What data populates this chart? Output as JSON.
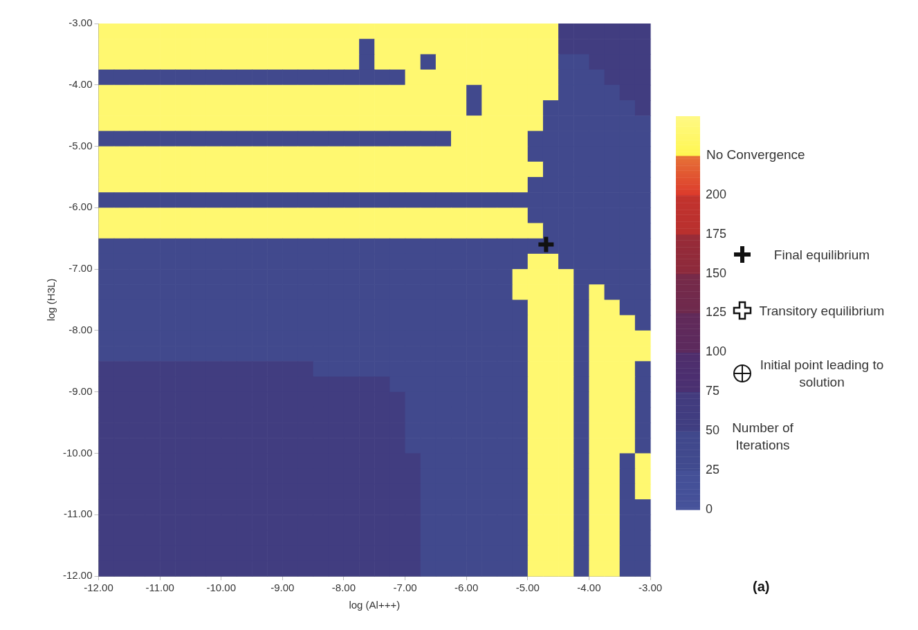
{
  "chart_data": {
    "type": "heatmap",
    "xlabel": "log (Al+++)",
    "ylabel": "log (H3L)",
    "clabel": "Number of Iterations",
    "xlim": [
      -12,
      -3
    ],
    "ylim": [
      -12,
      -3
    ],
    "xticks": [
      {
        "value": -12,
        "label": "-12.00"
      },
      {
        "value": -11,
        "label": "-11.00"
      },
      {
        "value": -10,
        "label": "-10.00"
      },
      {
        "value": -9,
        "label": "-9.00"
      },
      {
        "value": -8,
        "label": "-8.00"
      },
      {
        "value": -7,
        "label": "-7.00"
      },
      {
        "value": -6,
        "label": "-6.00"
      },
      {
        "value": -5,
        "label": "-5.00"
      },
      {
        "value": -4,
        "label": "-4.00"
      },
      {
        "value": -3,
        "label": "-3.00"
      }
    ],
    "yticks": [
      {
        "value": -12,
        "label": "-12.00"
      },
      {
        "value": -11,
        "label": "-11.00"
      },
      {
        "value": -10,
        "label": "-10.00"
      },
      {
        "value": -9,
        "label": "-9.00"
      },
      {
        "value": -8,
        "label": "-8.00"
      },
      {
        "value": -7,
        "label": "-7.00"
      },
      {
        "value": -6,
        "label": "-6.00"
      },
      {
        "value": -5,
        "label": "-5.00"
      },
      {
        "value": -4,
        "label": "-4.00"
      },
      {
        "value": -3,
        "label": "-3.00"
      }
    ],
    "clim": [
      0,
      250
    ],
    "cticks": [
      0,
      25,
      50,
      75,
      100,
      125,
      150,
      175,
      200
    ],
    "colors": [
      "#46529a",
      "#414b8f",
      "#403f82",
      "#4a3072",
      "#5c2a5e",
      "#6e2a4e",
      "#8c2a3c",
      "#b8302e",
      "#dc3a2c",
      "#fff650"
    ],
    "cells": [
      [
        240,
        240,
        240,
        240,
        240,
        240,
        240,
        240,
        240,
        240,
        240,
        240,
        240,
        240,
        240,
        240,
        240,
        240,
        240,
        240,
        240,
        240,
        240,
        240,
        240,
        240,
        240,
        240,
        240,
        240,
        60,
        60,
        60,
        60,
        60,
        60
      ],
      [
        240,
        240,
        240,
        240,
        240,
        240,
        240,
        240,
        240,
        240,
        240,
        240,
        240,
        240,
        240,
        240,
        240,
        40,
        240,
        240,
        240,
        240,
        240,
        240,
        240,
        240,
        240,
        240,
        240,
        240,
        60,
        60,
        60,
        60,
        60,
        60
      ],
      [
        240,
        240,
        240,
        240,
        240,
        240,
        240,
        240,
        240,
        240,
        240,
        240,
        240,
        240,
        240,
        240,
        240,
        40,
        240,
        240,
        240,
        40,
        240,
        240,
        240,
        240,
        240,
        240,
        240,
        240,
        40,
        40,
        60,
        60,
        60,
        60
      ],
      [
        40,
        40,
        40,
        40,
        40,
        40,
        40,
        40,
        40,
        40,
        40,
        40,
        40,
        40,
        40,
        40,
        40,
        40,
        40,
        40,
        240,
        240,
        240,
        240,
        240,
        240,
        240,
        240,
        240,
        240,
        40,
        40,
        40,
        60,
        60,
        60
      ],
      [
        240,
        240,
        240,
        240,
        240,
        240,
        240,
        240,
        240,
        240,
        240,
        240,
        240,
        240,
        240,
        240,
        240,
        240,
        240,
        240,
        240,
        240,
        240,
        240,
        40,
        240,
        240,
        240,
        240,
        240,
        40,
        40,
        40,
        40,
        60,
        60
      ],
      [
        240,
        240,
        240,
        240,
        240,
        240,
        240,
        240,
        240,
        240,
        240,
        240,
        240,
        240,
        240,
        240,
        240,
        240,
        240,
        240,
        240,
        240,
        240,
        240,
        40,
        240,
        240,
        240,
        240,
        40,
        40,
        40,
        40,
        40,
        40,
        60
      ],
      [
        240,
        240,
        240,
        240,
        240,
        240,
        240,
        240,
        240,
        240,
        240,
        240,
        240,
        240,
        240,
        240,
        240,
        240,
        240,
        240,
        240,
        240,
        240,
        240,
        240,
        240,
        240,
        240,
        240,
        40,
        40,
        40,
        40,
        40,
        40,
        40
      ],
      [
        40,
        40,
        40,
        40,
        40,
        40,
        40,
        40,
        40,
        40,
        40,
        40,
        40,
        40,
        40,
        40,
        40,
        40,
        40,
        40,
        40,
        40,
        40,
        240,
        240,
        240,
        240,
        240,
        40,
        40,
        40,
        40,
        40,
        40,
        40,
        40
      ],
      [
        240,
        240,
        240,
        240,
        240,
        240,
        240,
        240,
        240,
        240,
        240,
        240,
        240,
        240,
        240,
        240,
        240,
        240,
        240,
        240,
        240,
        240,
        240,
        240,
        240,
        240,
        240,
        240,
        40,
        40,
        40,
        40,
        40,
        40,
        40,
        40
      ],
      [
        240,
        240,
        240,
        240,
        240,
        240,
        240,
        240,
        240,
        240,
        240,
        240,
        240,
        240,
        240,
        240,
        240,
        240,
        240,
        240,
        240,
        240,
        240,
        240,
        240,
        240,
        240,
        240,
        240,
        40,
        40,
        40,
        40,
        40,
        40,
        40
      ],
      [
        240,
        240,
        240,
        240,
        240,
        240,
        240,
        240,
        240,
        240,
        240,
        240,
        240,
        240,
        240,
        240,
        240,
        240,
        240,
        240,
        240,
        240,
        240,
        240,
        240,
        240,
        240,
        240,
        40,
        40,
        40,
        40,
        40,
        40,
        40,
        40
      ],
      [
        40,
        40,
        40,
        40,
        40,
        40,
        40,
        40,
        40,
        40,
        40,
        40,
        40,
        40,
        40,
        40,
        40,
        40,
        40,
        40,
        40,
        40,
        40,
        40,
        40,
        40,
        40,
        40,
        40,
        40,
        40,
        40,
        40,
        40,
        40,
        40
      ],
      [
        240,
        240,
        240,
        240,
        240,
        240,
        240,
        240,
        240,
        240,
        240,
        240,
        240,
        240,
        240,
        240,
        240,
        240,
        240,
        240,
        240,
        240,
        240,
        240,
        240,
        240,
        240,
        240,
        40,
        40,
        40,
        40,
        40,
        40,
        40,
        40
      ],
      [
        240,
        240,
        240,
        240,
        240,
        240,
        240,
        240,
        240,
        240,
        240,
        240,
        240,
        240,
        240,
        240,
        240,
        240,
        240,
        240,
        240,
        240,
        240,
        240,
        240,
        240,
        240,
        240,
        240,
        40,
        40,
        40,
        40,
        40,
        40,
        40
      ],
      [
        40,
        40,
        40,
        40,
        40,
        40,
        40,
        40,
        40,
        40,
        40,
        40,
        40,
        40,
        40,
        40,
        40,
        40,
        40,
        40,
        40,
        40,
        40,
        40,
        40,
        40,
        40,
        40,
        40,
        40,
        40,
        40,
        40,
        40,
        40,
        40
      ],
      [
        40,
        40,
        40,
        40,
        40,
        40,
        40,
        40,
        40,
        40,
        40,
        40,
        40,
        40,
        40,
        40,
        40,
        40,
        40,
        40,
        40,
        40,
        40,
        40,
        40,
        40,
        40,
        40,
        240,
        240,
        40,
        40,
        40,
        40,
        40,
        40
      ],
      [
        40,
        40,
        40,
        40,
        40,
        40,
        40,
        40,
        40,
        40,
        40,
        40,
        40,
        40,
        40,
        40,
        40,
        40,
        40,
        40,
        40,
        40,
        40,
        40,
        40,
        40,
        40,
        240,
        240,
        240,
        240,
        40,
        40,
        40,
        40,
        40
      ],
      [
        40,
        40,
        40,
        40,
        40,
        40,
        40,
        40,
        40,
        40,
        40,
        40,
        40,
        40,
        40,
        40,
        40,
        40,
        40,
        40,
        40,
        40,
        40,
        40,
        40,
        40,
        40,
        240,
        240,
        240,
        240,
        40,
        240,
        40,
        40,
        40
      ],
      [
        40,
        40,
        40,
        40,
        40,
        40,
        40,
        40,
        40,
        40,
        40,
        40,
        40,
        40,
        40,
        40,
        40,
        40,
        40,
        40,
        40,
        40,
        40,
        40,
        40,
        40,
        40,
        40,
        240,
        240,
        240,
        40,
        240,
        240,
        40,
        40
      ],
      [
        40,
        40,
        40,
        40,
        40,
        40,
        40,
        40,
        40,
        40,
        40,
        40,
        40,
        40,
        40,
        40,
        40,
        40,
        40,
        40,
        40,
        40,
        40,
        40,
        40,
        40,
        40,
        40,
        240,
        240,
        240,
        40,
        240,
        240,
        240,
        40
      ],
      [
        40,
        40,
        40,
        40,
        40,
        40,
        40,
        40,
        40,
        40,
        40,
        40,
        40,
        40,
        40,
        40,
        40,
        40,
        40,
        40,
        40,
        40,
        40,
        40,
        40,
        40,
        40,
        40,
        240,
        240,
        240,
        40,
        240,
        240,
        240,
        240
      ],
      [
        40,
        40,
        40,
        40,
        40,
        40,
        40,
        40,
        40,
        40,
        40,
        40,
        40,
        40,
        40,
        40,
        40,
        40,
        40,
        40,
        40,
        40,
        40,
        40,
        40,
        40,
        40,
        40,
        240,
        240,
        240,
        40,
        240,
        240,
        240,
        240
      ],
      [
        60,
        60,
        60,
        60,
        60,
        60,
        60,
        60,
        60,
        60,
        60,
        60,
        60,
        60,
        40,
        40,
        40,
        40,
        40,
        40,
        40,
        40,
        40,
        40,
        40,
        40,
        40,
        40,
        240,
        240,
        240,
        40,
        240,
        240,
        240,
        40
      ],
      [
        60,
        60,
        60,
        60,
        60,
        60,
        60,
        60,
        60,
        60,
        60,
        60,
        60,
        60,
        60,
        60,
        60,
        60,
        60,
        40,
        40,
        40,
        40,
        40,
        40,
        40,
        40,
        40,
        240,
        240,
        240,
        40,
        240,
        240,
        240,
        40
      ],
      [
        60,
        60,
        60,
        60,
        60,
        60,
        60,
        60,
        60,
        60,
        60,
        60,
        60,
        60,
        60,
        60,
        60,
        60,
        60,
        60,
        40,
        40,
        40,
        40,
        40,
        40,
        40,
        40,
        240,
        240,
        240,
        40,
        240,
        240,
        240,
        40
      ],
      [
        60,
        60,
        60,
        60,
        60,
        60,
        60,
        60,
        60,
        60,
        60,
        60,
        60,
        60,
        60,
        60,
        60,
        60,
        60,
        60,
        40,
        40,
        40,
        40,
        40,
        40,
        40,
        40,
        240,
        240,
        240,
        40,
        240,
        240,
        240,
        40
      ],
      [
        60,
        60,
        60,
        60,
        60,
        60,
        60,
        60,
        60,
        60,
        60,
        60,
        60,
        60,
        60,
        60,
        60,
        60,
        60,
        60,
        40,
        40,
        40,
        40,
        40,
        40,
        40,
        40,
        240,
        240,
        240,
        40,
        240,
        240,
        240,
        40
      ],
      [
        60,
        60,
        60,
        60,
        60,
        60,
        60,
        60,
        60,
        60,
        60,
        60,
        60,
        60,
        60,
        60,
        60,
        60,
        60,
        60,
        40,
        40,
        40,
        40,
        40,
        40,
        40,
        40,
        240,
        240,
        240,
        40,
        240,
        240,
        240,
        40
      ],
      [
        60,
        60,
        60,
        60,
        60,
        60,
        60,
        60,
        60,
        60,
        60,
        60,
        60,
        60,
        60,
        60,
        60,
        60,
        60,
        60,
        60,
        40,
        40,
        40,
        40,
        40,
        40,
        40,
        240,
        240,
        240,
        40,
        240,
        240,
        40,
        240
      ],
      [
        60,
        60,
        60,
        60,
        60,
        60,
        60,
        60,
        60,
        60,
        60,
        60,
        60,
        60,
        60,
        60,
        60,
        60,
        60,
        60,
        60,
        40,
        40,
        40,
        40,
        40,
        40,
        40,
        240,
        240,
        240,
        40,
        240,
        240,
        40,
        240
      ],
      [
        60,
        60,
        60,
        60,
        60,
        60,
        60,
        60,
        60,
        60,
        60,
        60,
        60,
        60,
        60,
        60,
        60,
        60,
        60,
        60,
        60,
        40,
        40,
        40,
        40,
        40,
        40,
        40,
        240,
        240,
        240,
        40,
        240,
        240,
        40,
        240
      ],
      [
        60,
        60,
        60,
        60,
        60,
        60,
        60,
        60,
        60,
        60,
        60,
        60,
        60,
        60,
        60,
        60,
        60,
        60,
        60,
        60,
        60,
        40,
        40,
        40,
        40,
        40,
        40,
        40,
        240,
        240,
        240,
        40,
        240,
        240,
        40,
        40
      ],
      [
        60,
        60,
        60,
        60,
        60,
        60,
        60,
        60,
        60,
        60,
        60,
        60,
        60,
        60,
        60,
        60,
        60,
        60,
        60,
        60,
        60,
        40,
        40,
        40,
        40,
        40,
        40,
        40,
        240,
        240,
        240,
        40,
        240,
        240,
        40,
        40
      ],
      [
        60,
        60,
        60,
        60,
        60,
        60,
        60,
        60,
        60,
        60,
        60,
        60,
        60,
        60,
        60,
        60,
        60,
        60,
        60,
        60,
        60,
        40,
        40,
        40,
        40,
        40,
        40,
        40,
        240,
        240,
        240,
        40,
        240,
        240,
        40,
        40
      ],
      [
        60,
        60,
        60,
        60,
        60,
        60,
        60,
        60,
        60,
        60,
        60,
        60,
        60,
        60,
        60,
        60,
        60,
        60,
        60,
        60,
        60,
        40,
        40,
        40,
        40,
        40,
        40,
        40,
        240,
        240,
        240,
        40,
        240,
        240,
        40,
        40
      ],
      [
        60,
        60,
        60,
        60,
        60,
        60,
        60,
        60,
        60,
        60,
        60,
        60,
        60,
        60,
        60,
        60,
        60,
        60,
        60,
        60,
        60,
        40,
        40,
        40,
        40,
        40,
        40,
        40,
        240,
        240,
        240,
        40,
        240,
        240,
        40,
        40
      ]
    ],
    "series": [
      {
        "name": "Final equilibrium",
        "type": "scatter",
        "marker": "cross",
        "color": "#111111",
        "x": [
          -4.7
        ],
        "values": [
          -6.6
        ]
      }
    ],
    "legend": "right",
    "annotations": [
      "No Convergence",
      "Transitory equilibrium",
      "Initial point leading to solution",
      "(a)"
    ]
  }
}
